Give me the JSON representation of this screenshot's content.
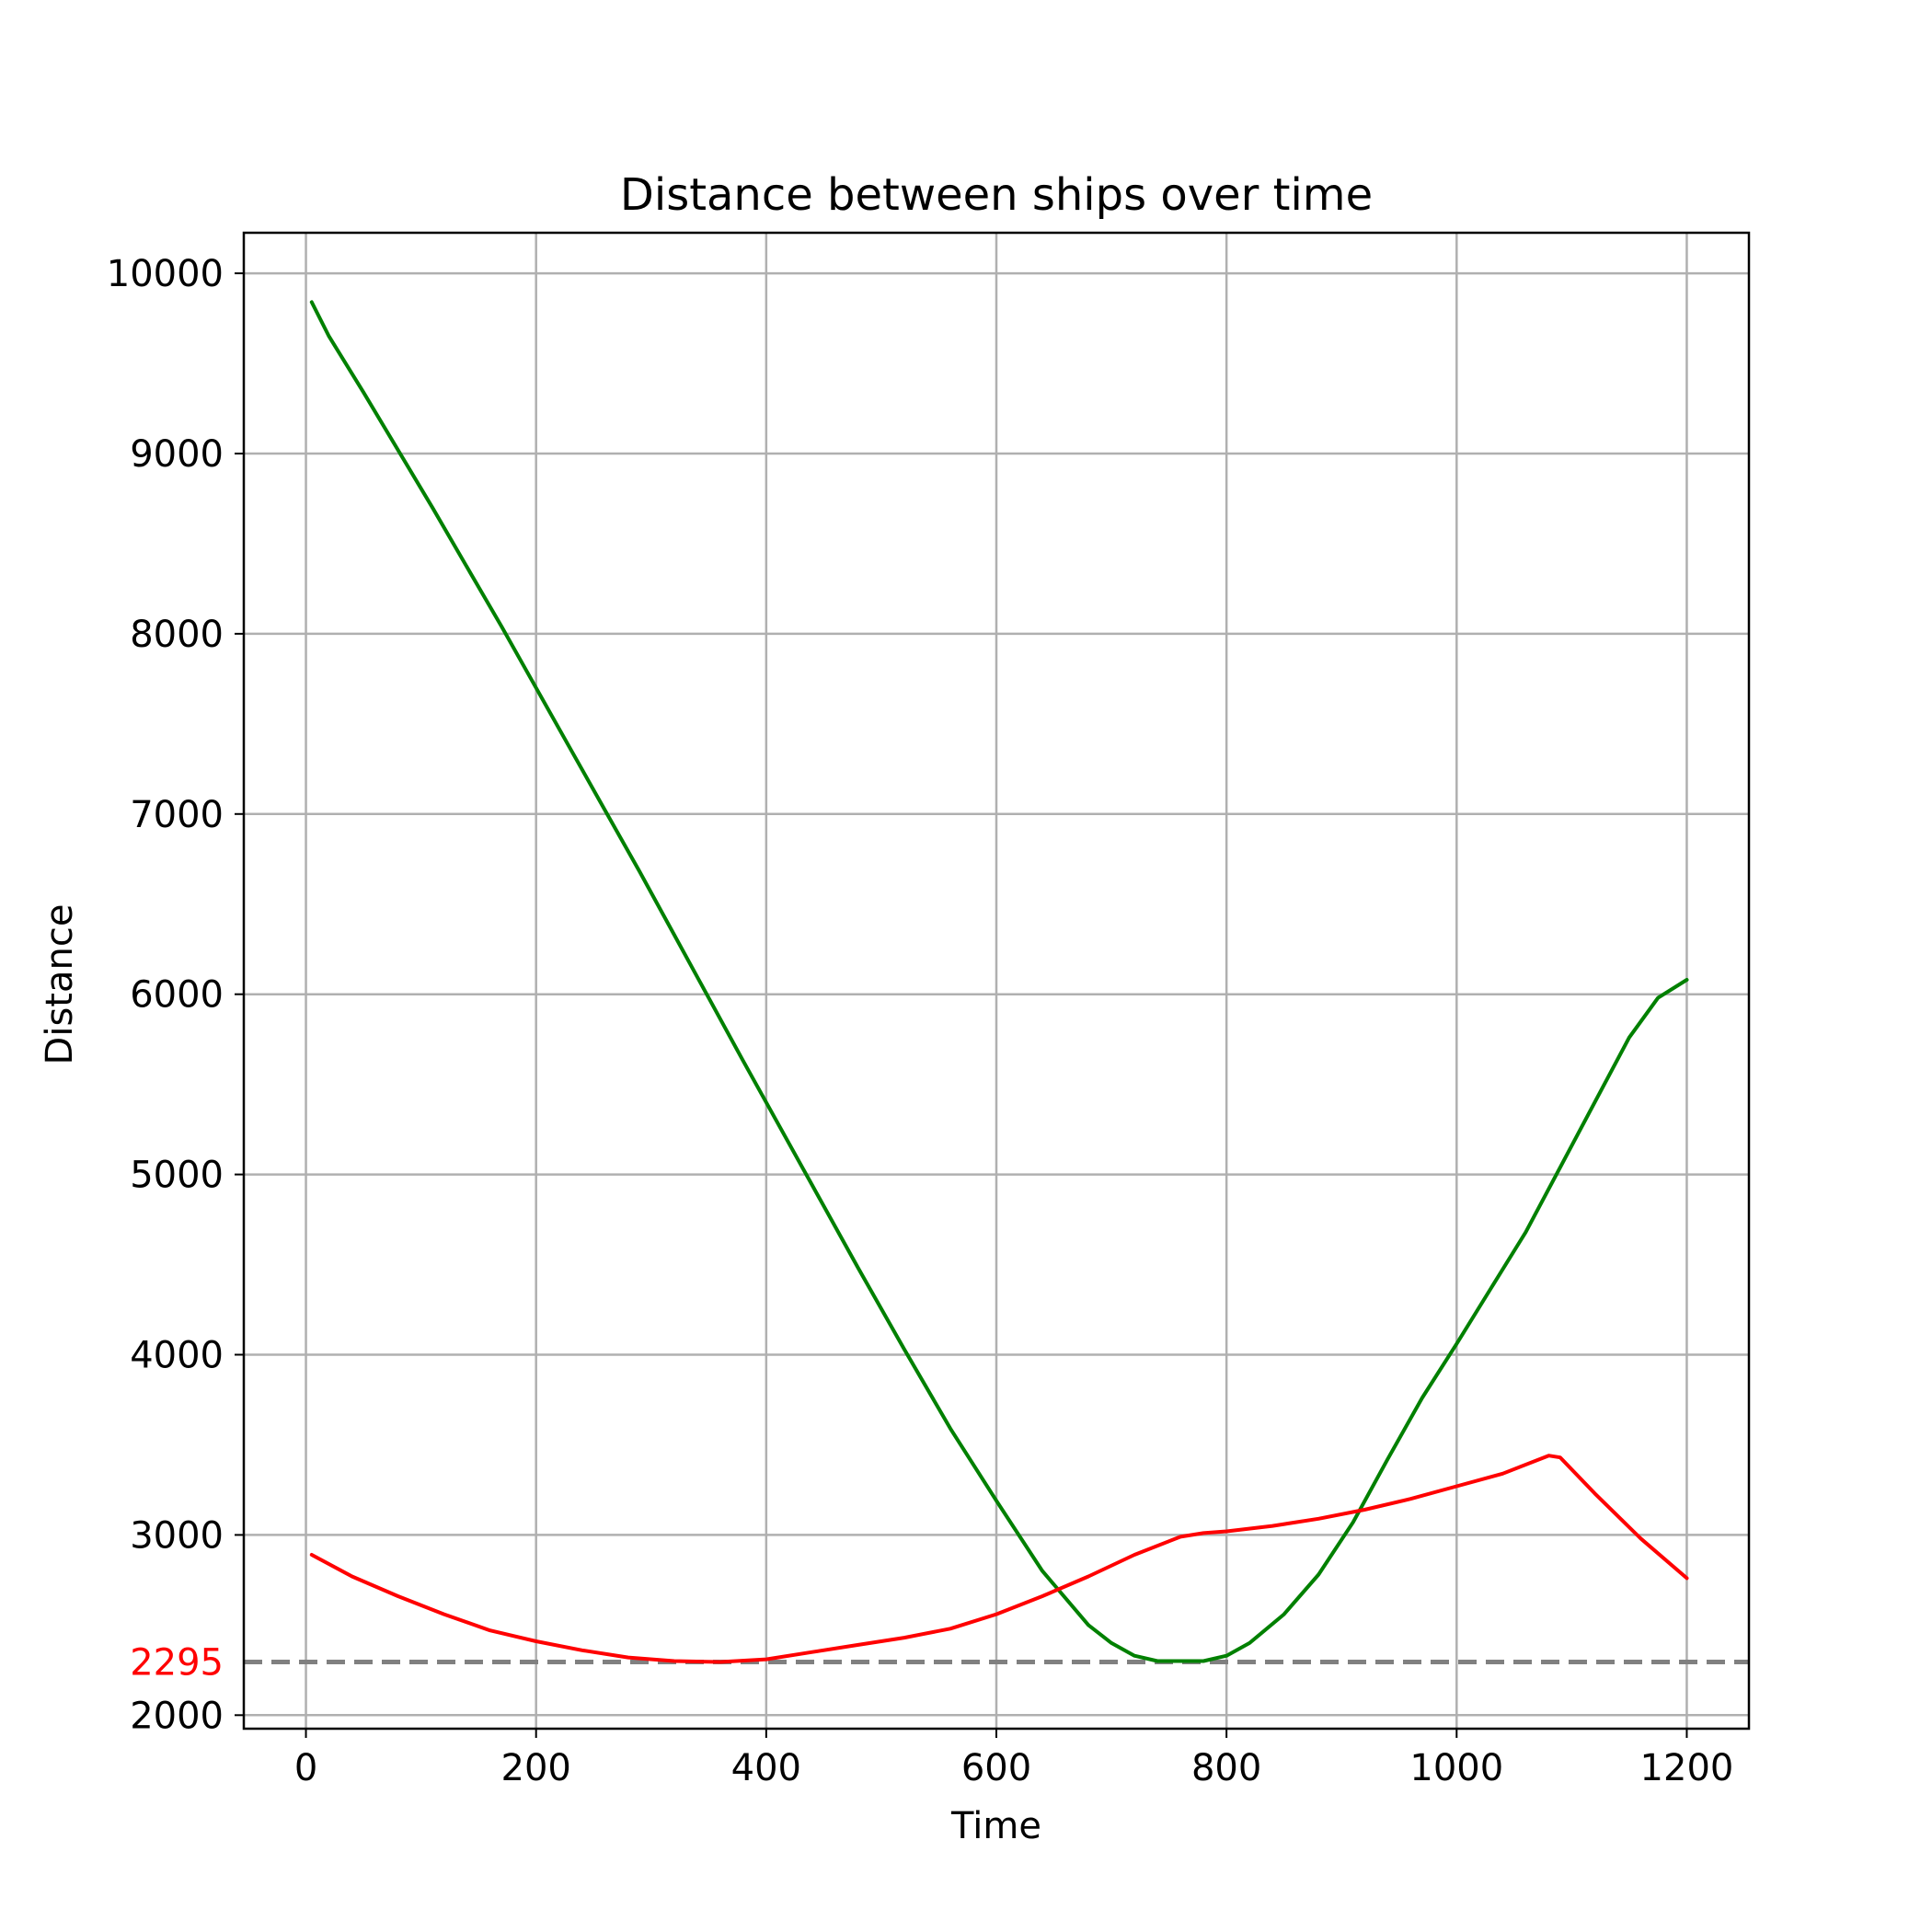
{
  "chart_data": {
    "type": "line",
    "title": "Distance between ships over time",
    "xlabel": "Time",
    "ylabel": "Distance",
    "xlim": [
      -54,
      1254
    ],
    "ylim": [
      1925,
      10225
    ],
    "xticks": [
      0,
      200,
      400,
      600,
      800,
      1000,
      1200
    ],
    "yticks": [
      2000,
      3000,
      4000,
      5000,
      6000,
      7000,
      8000,
      9000,
      10000
    ],
    "grid": true,
    "legend": "none",
    "reference_line": {
      "y": 2295,
      "label": "2295",
      "color": "#808080",
      "label_color": "#ff0000",
      "style": "dashed"
    },
    "series": [
      {
        "color": "#008000",
        "x": [
          5,
          20,
          50,
          80,
          110,
          140,
          170,
          200,
          230,
          260,
          290,
          320,
          350,
          380,
          400,
          440,
          480,
          520,
          560,
          600,
          640,
          680,
          700,
          720,
          740,
          760,
          780,
          800,
          820,
          850,
          880,
          910,
          940,
          970,
          1000,
          1030,
          1060,
          1090,
          1120,
          1150,
          1175,
          1200
        ],
        "y": [
          9840,
          9650,
          9340,
          9020,
          8700,
          8370,
          8040,
          7700,
          7360,
          7020,
          6680,
          6330,
          5980,
          5630,
          5400,
          4940,
          4480,
          4030,
          3590,
          3190,
          2800,
          2500,
          2400,
          2330,
          2300,
          2300,
          2300,
          2330,
          2400,
          2560,
          2780,
          3070,
          3420,
          3760,
          4060,
          4370,
          4680,
          5040,
          5400,
          5760,
          5980,
          6080
        ]
      },
      {
        "color": "#ff0000",
        "x": [
          5,
          40,
          80,
          120,
          160,
          200,
          240,
          280,
          320,
          360,
          400,
          440,
          480,
          520,
          560,
          600,
          640,
          680,
          720,
          760,
          780,
          800,
          840,
          880,
          920,
          960,
          1000,
          1040,
          1080,
          1090,
          1120,
          1160,
          1200
        ],
        "y": [
          2890,
          2770,
          2660,
          2560,
          2470,
          2410,
          2360,
          2320,
          2300,
          2295,
          2310,
          2350,
          2390,
          2430,
          2480,
          2560,
          2660,
          2770,
          2890,
          2990,
          3010,
          3020,
          3050,
          3090,
          3140,
          3200,
          3270,
          3340,
          3440,
          3430,
          3230,
          2980,
          2760
        ]
      }
    ]
  }
}
